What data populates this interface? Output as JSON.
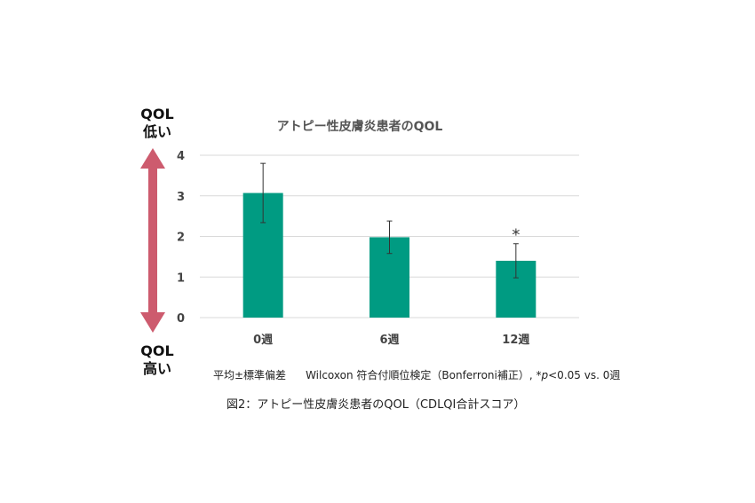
{
  "labels": {
    "qol_top": [
      "QOL",
      "低い"
    ],
    "qol_bottom": [
      "QOL",
      "高い"
    ]
  },
  "note": {
    "stats": "平均±標準偏差",
    "method": "Wilcoxon 符合付順位検定（Bonferroni補正）, *",
    "p_symbol": "p",
    "method_tail": "<0.05 vs. 0週"
  },
  "caption": "図2：アトピー性皮膚炎患者のQOL（CDLQI合計スコア）",
  "colors": {
    "bar": "#009b82",
    "arrow": "#cd5b6e",
    "grid": "#d9d9d9",
    "error_bar": "#333333"
  },
  "chart_data": {
    "type": "bar",
    "title": "アトピー性皮膚炎患者のQOL",
    "categories": [
      "0週",
      "6週",
      "12週"
    ],
    "values": [
      3.07,
      1.98,
      1.4
    ],
    "error": [
      0.73,
      0.4,
      0.42
    ],
    "significance": [
      "",
      "",
      "*"
    ],
    "ylim": [
      0,
      4
    ],
    "yticks": [
      0,
      1,
      2,
      3,
      4
    ],
    "grid": true,
    "legend": "none"
  }
}
